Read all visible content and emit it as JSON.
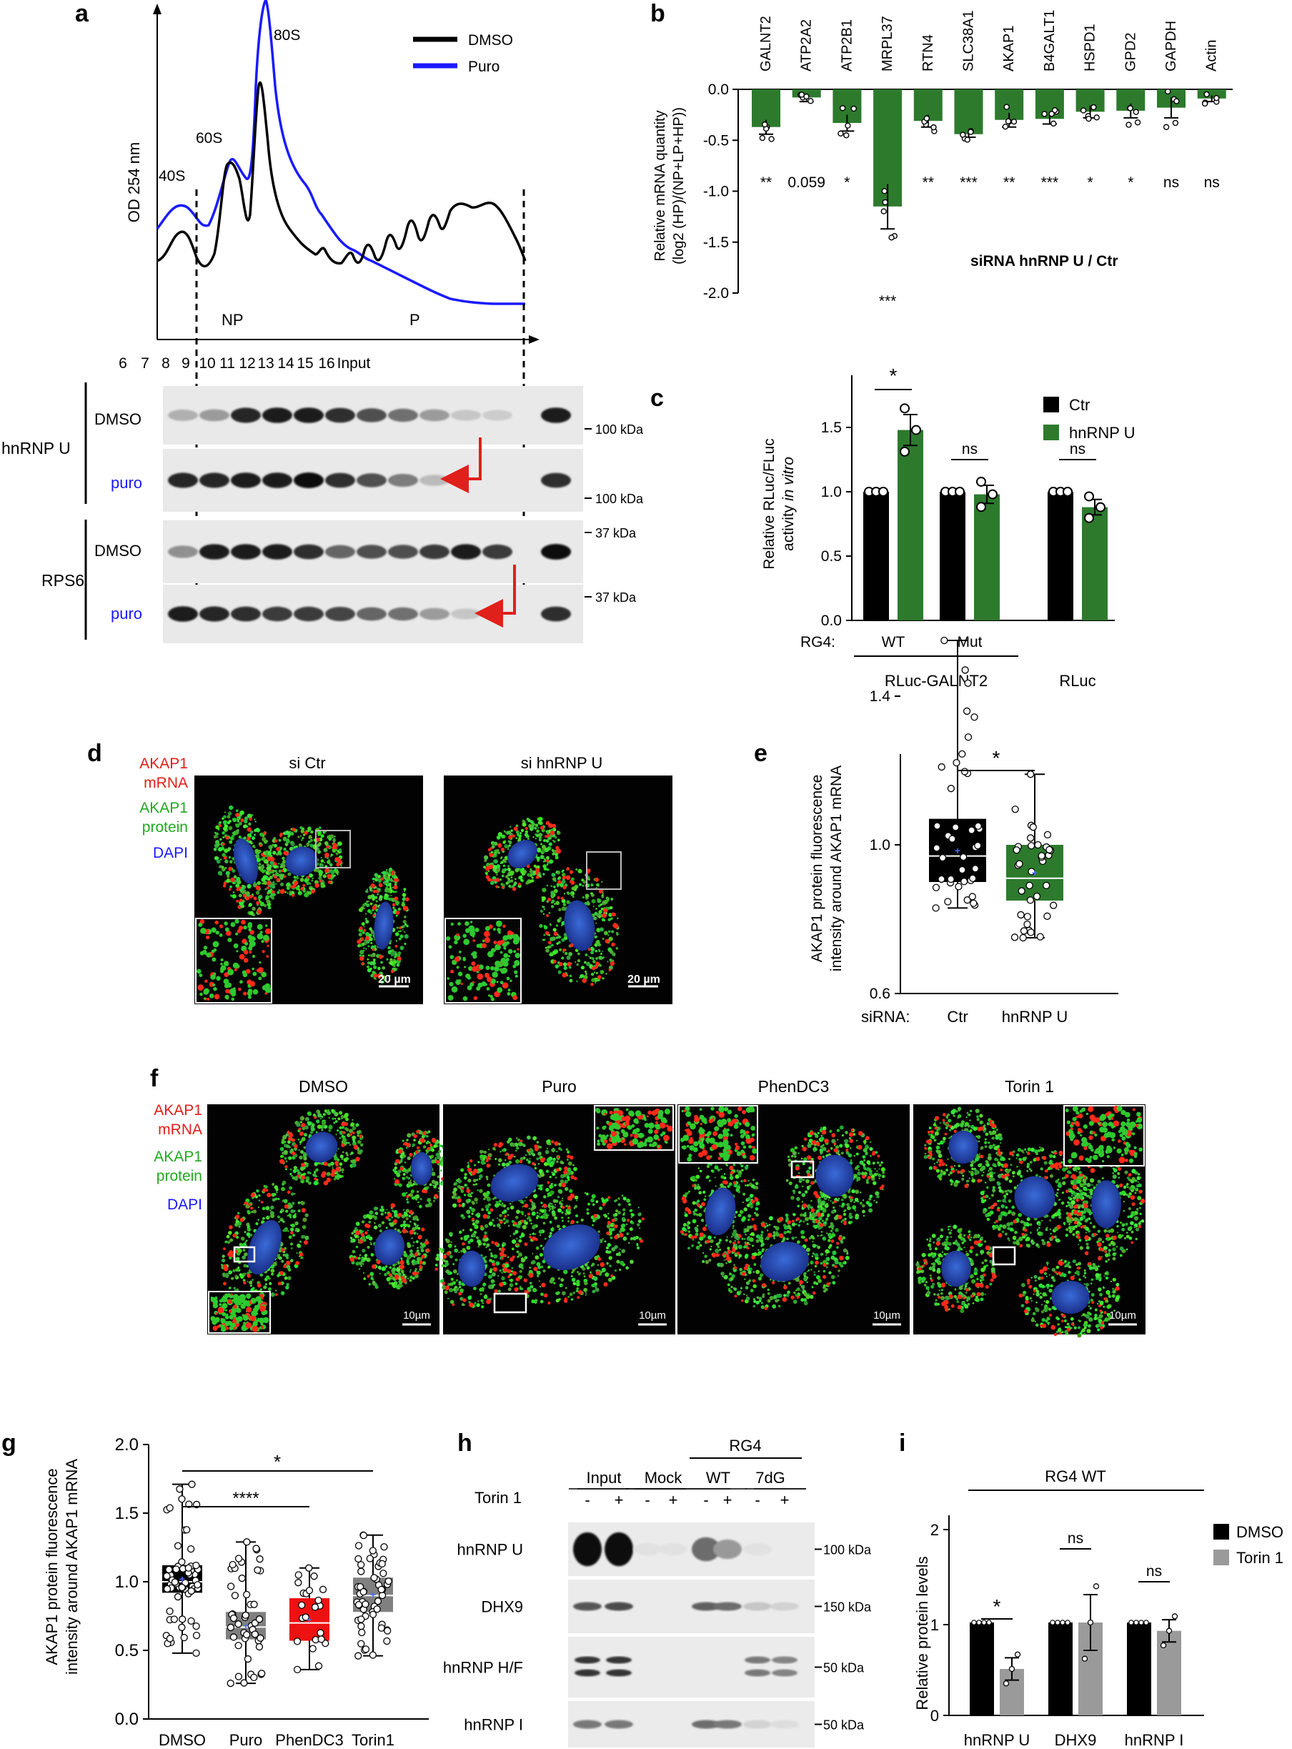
{
  "panels": {
    "a": {
      "letter": "a",
      "y_label": "OD 254 nm",
      "legend": [
        {
          "name": "DMSO",
          "color": "#000000"
        },
        {
          "name": "Puro",
          "color": "#1a1aff"
        }
      ],
      "peak_labels": [
        "40S",
        "60S",
        "80S"
      ],
      "region_labels": [
        "NP",
        "P"
      ],
      "fractions": [
        "6",
        "7",
        "8",
        "9",
        "10",
        "11",
        "12",
        "13",
        "14",
        "15",
        "16",
        "Input"
      ],
      "blot_groups": [
        "hnRNP U",
        "RPS6"
      ],
      "blot_rows": [
        "DMSO",
        "puro",
        "DMSO",
        "puro"
      ],
      "markers": [
        "100 kDa",
        "100 kDa",
        "37 kDa",
        "37 kDa"
      ],
      "dmso_hnrnpu_bands": [
        0.25,
        0.35,
        0.9,
        0.95,
        0.95,
        0.85,
        0.7,
        0.55,
        0.35,
        0.15,
        0.12,
        0.95
      ],
      "puro_hnrnpu_bands": [
        0.9,
        0.9,
        0.95,
        0.95,
        1.0,
        0.85,
        0.7,
        0.5,
        0.2,
        0.0,
        0.0,
        0.85
      ],
      "dmso_rps6_bands": [
        0.4,
        0.95,
        0.95,
        0.95,
        0.85,
        0.6,
        0.7,
        0.7,
        0.8,
        0.95,
        0.8,
        1.0
      ],
      "puro_rps6_bands": [
        0.95,
        0.9,
        0.85,
        0.8,
        0.8,
        0.75,
        0.6,
        0.55,
        0.35,
        0.15,
        0.0,
        0.85
      ]
    },
    "b": {
      "letter": "b",
      "y_label_1": "Relative mRNA quantity",
      "y_label_2": "(log2 (HP)/(NP+LP+HP))",
      "subtitle": "siRNA hnRNP U /  Ctr",
      "y_ticks": [
        "0.0",
        "-0.5",
        "-1.0",
        "-1.5",
        "-2.0"
      ]
    },
    "c": {
      "letter": "c",
      "y_label_1": "Relative RLuc/FLuc",
      "y_label_2a": "activity ",
      "y_label_2b": "in vitro",
      "y_ticks": [
        "0.0",
        "0.5",
        "1.0",
        "1.5"
      ],
      "legend": [
        "Ctr",
        "hnRNP U"
      ],
      "rg4_label": "RG4:",
      "wt": "WT",
      "mut": "Mut",
      "construct_1": "RLuc-GALNT2",
      "construct_2": "RLuc",
      "sig": [
        "*",
        "ns",
        "ns"
      ]
    },
    "d": {
      "letter": "d",
      "titles": [
        "si Ctr",
        "si hnRNP U"
      ],
      "stain_1a": "AKAP1",
      "stain_1b": "mRNA",
      "stain_2a": "AKAP1",
      "stain_2b": "protein",
      "stain_3": "DAPI",
      "scale_bar": "20 µm"
    },
    "e": {
      "letter": "e",
      "y_label_1": "AKAP1 protein fluorescence",
      "y_label_2": "intensity around AKAP1 mRNA",
      "y_ticks": [
        "0.6",
        "1.0",
        "1.4"
      ],
      "x_title": "siRNA:",
      "groups": [
        "Ctr",
        "hnRNP U"
      ],
      "sig": "*"
    },
    "f": {
      "letter": "f",
      "titles": [
        "DMSO",
        "Puro",
        "PhenDC3",
        "Torin 1"
      ],
      "stain_1a": "AKAP1",
      "stain_1b": "mRNA",
      "stain_2a": "AKAP1",
      "stain_2b": "protein",
      "stain_3": "DAPI",
      "scale_bar": "10µm"
    },
    "g": {
      "letter": "g",
      "y_label_1": "AKAP1 protein fluorescence",
      "y_label_2": "intensity around AKAP1 mRNA",
      "y_ticks": [
        "0.0",
        "0.5",
        "1.0",
        "1.5",
        "2.0"
      ],
      "groups": [
        "DMSO",
        "Puro",
        "PhenDC3",
        "Torin1"
      ],
      "sig": [
        "****",
        "*"
      ]
    },
    "h": {
      "letter": "h",
      "rg4": "RG4",
      "lanes_top": [
        "Input",
        "Mock",
        "WT",
        "7dG"
      ],
      "torin": "Torin 1",
      "minus": "-",
      "plus": "+",
      "rows": [
        "hnRNP U",
        "DHX9",
        "hnRNP H/F",
        "hnRNP I"
      ],
      "markers": [
        "100 kDa",
        "150 kDa",
        "50 kDa",
        "50 kDa"
      ]
    },
    "i": {
      "letter": "i",
      "title": "RG4 WT",
      "y_label": "Relative protein levels",
      "y_ticks": [
        "0",
        "1",
        "2"
      ],
      "legend": [
        "DMSO",
        "Torin 1"
      ],
      "sig": [
        "*",
        "ns",
        "ns"
      ]
    }
  },
  "chart_data": [
    {
      "panel": "b",
      "type": "bar",
      "categories": [
        "GALNT2",
        "ATP2A2",
        "ATP2B1",
        "MRPL37",
        "RTN4",
        "SLC38A1",
        "AKAP1",
        "B4GALT1",
        "HSPD1",
        "GPD2",
        "GAPDH",
        "Actin"
      ],
      "values": [
        -0.37,
        -0.08,
        -0.33,
        -1.15,
        -0.31,
        -0.44,
        -0.3,
        -0.29,
        -0.22,
        -0.21,
        -0.18,
        -0.09
      ],
      "errors": [
        0.07,
        0.04,
        0.08,
        0.22,
        0.06,
        0.03,
        0.07,
        0.05,
        0.06,
        0.07,
        0.1,
        0.03
      ],
      "significance": [
        "**",
        "0.059",
        "*",
        "***",
        "**",
        "***",
        "**",
        "***",
        "*",
        "*",
        "ns",
        "ns"
      ],
      "ylim": [
        -2.0,
        0.0
      ],
      "color": "#2d7a2d"
    },
    {
      "panel": "c",
      "type": "bar",
      "categories": [
        "RLuc-GALNT2 WT",
        "RLuc-GALNT2 Mut",
        "RLuc"
      ],
      "series": [
        {
          "name": "Ctr",
          "values": [
            1.0,
            1.0,
            1.0
          ],
          "errors": [
            0,
            0,
            0
          ],
          "color": "#000000"
        },
        {
          "name": "hnRNP U",
          "values": [
            1.48,
            0.98,
            0.88
          ],
          "errors": [
            0.12,
            0.07,
            0.06
          ],
          "color": "#2d7a2d"
        }
      ],
      "ylim": [
        0.0,
        1.8
      ]
    },
    {
      "panel": "e",
      "type": "box",
      "groups": [
        "Ctr",
        "hnRNP U"
      ],
      "boxes": [
        {
          "min": 0.83,
          "q1": 0.9,
          "median": 0.97,
          "q3": 1.07,
          "max": 1.55,
          "color": "#000000"
        },
        {
          "min": 0.75,
          "q1": 0.85,
          "median": 0.91,
          "q3": 1.0,
          "max": 1.19,
          "color": "#2d7a2d"
        }
      ],
      "ylim": [
        0.6,
        1.6
      ]
    },
    {
      "panel": "g",
      "type": "box",
      "groups": [
        "DMSO",
        "Puro",
        "PhenDC3",
        "Torin1"
      ],
      "boxes": [
        {
          "min": 0.48,
          "q1": 0.92,
          "median": 1.0,
          "q3": 1.12,
          "max": 1.71,
          "color": "#000000"
        },
        {
          "min": 0.26,
          "q1": 0.58,
          "median": 0.67,
          "q3": 0.78,
          "max": 1.29,
          "color": "#808080"
        },
        {
          "min": 0.36,
          "q1": 0.57,
          "median": 0.7,
          "q3": 0.88,
          "max": 1.1,
          "color": "#ee1111"
        },
        {
          "min": 0.46,
          "q1": 0.78,
          "median": 0.9,
          "q3": 1.03,
          "max": 1.34,
          "color": "#808080"
        }
      ],
      "ylim": [
        0.0,
        2.0
      ]
    },
    {
      "panel": "i",
      "type": "bar",
      "categories": [
        "hnRNP U",
        "DHX9",
        "hnRNP I"
      ],
      "series": [
        {
          "name": "DMSO",
          "values": [
            1.0,
            1.0,
            1.0
          ],
          "errors": [
            0,
            0,
            0
          ],
          "color": "#000000"
        },
        {
          "name": "Torin 1",
          "values": [
            0.5,
            1.0,
            0.91
          ],
          "errors": [
            0.12,
            0.3,
            0.12
          ],
          "color": "#9a9a9a"
        }
      ],
      "ylim": [
        0,
        2
      ]
    }
  ]
}
